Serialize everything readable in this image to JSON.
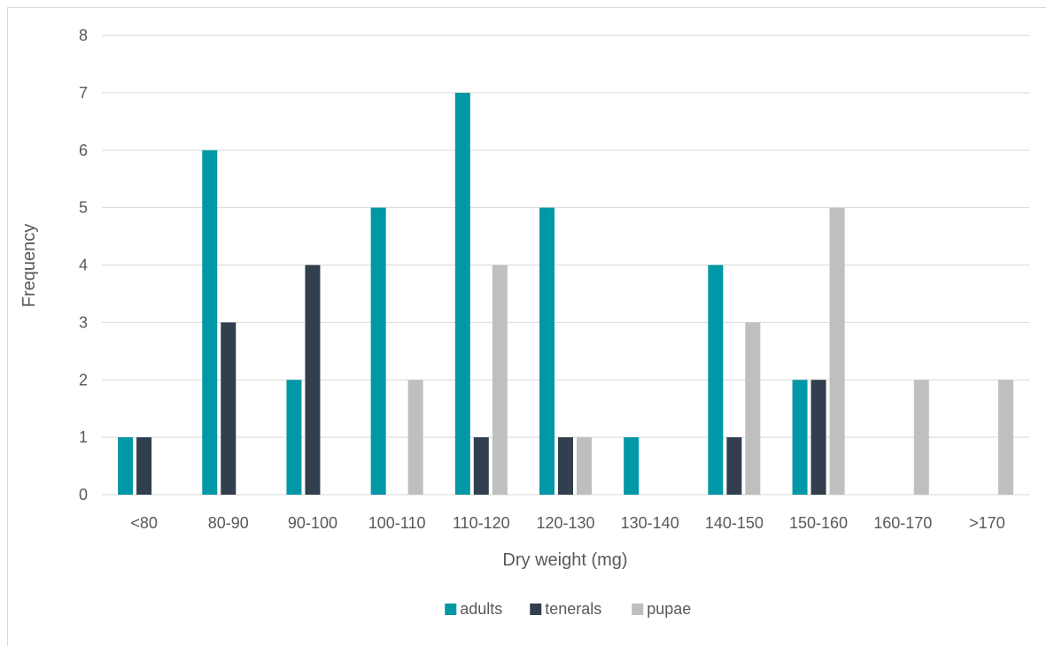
{
  "chart_data": {
    "type": "bar",
    "title": "",
    "xlabel": "Dry weight (mg)",
    "ylabel": "Frequency",
    "ylim": [
      0,
      8
    ],
    "yticks": [
      "0",
      "1",
      "2",
      "3",
      "4",
      "5",
      "6",
      "7",
      "8"
    ],
    "grid": true,
    "legend_position": "bottom",
    "categories": [
      "<80",
      "80-90",
      "90-100",
      "100-110",
      "110-120",
      "120-130",
      "130-140",
      "140-150",
      "150-160",
      "160-170",
      ">170"
    ],
    "series": [
      {
        "name": "adults",
        "color": "#0097a7",
        "values": [
          1,
          6,
          2,
          5,
          7,
          5,
          1,
          4,
          2,
          0,
          0
        ]
      },
      {
        "name": "tenerals",
        "color": "#323f4f",
        "values": [
          1,
          3,
          4,
          0,
          1,
          1,
          0,
          1,
          2,
          0,
          0
        ]
      },
      {
        "name": "pupae",
        "color": "#bfbfbf",
        "values": [
          0,
          0,
          0,
          2,
          4,
          1,
          0,
          3,
          5,
          2,
          2
        ]
      }
    ]
  }
}
